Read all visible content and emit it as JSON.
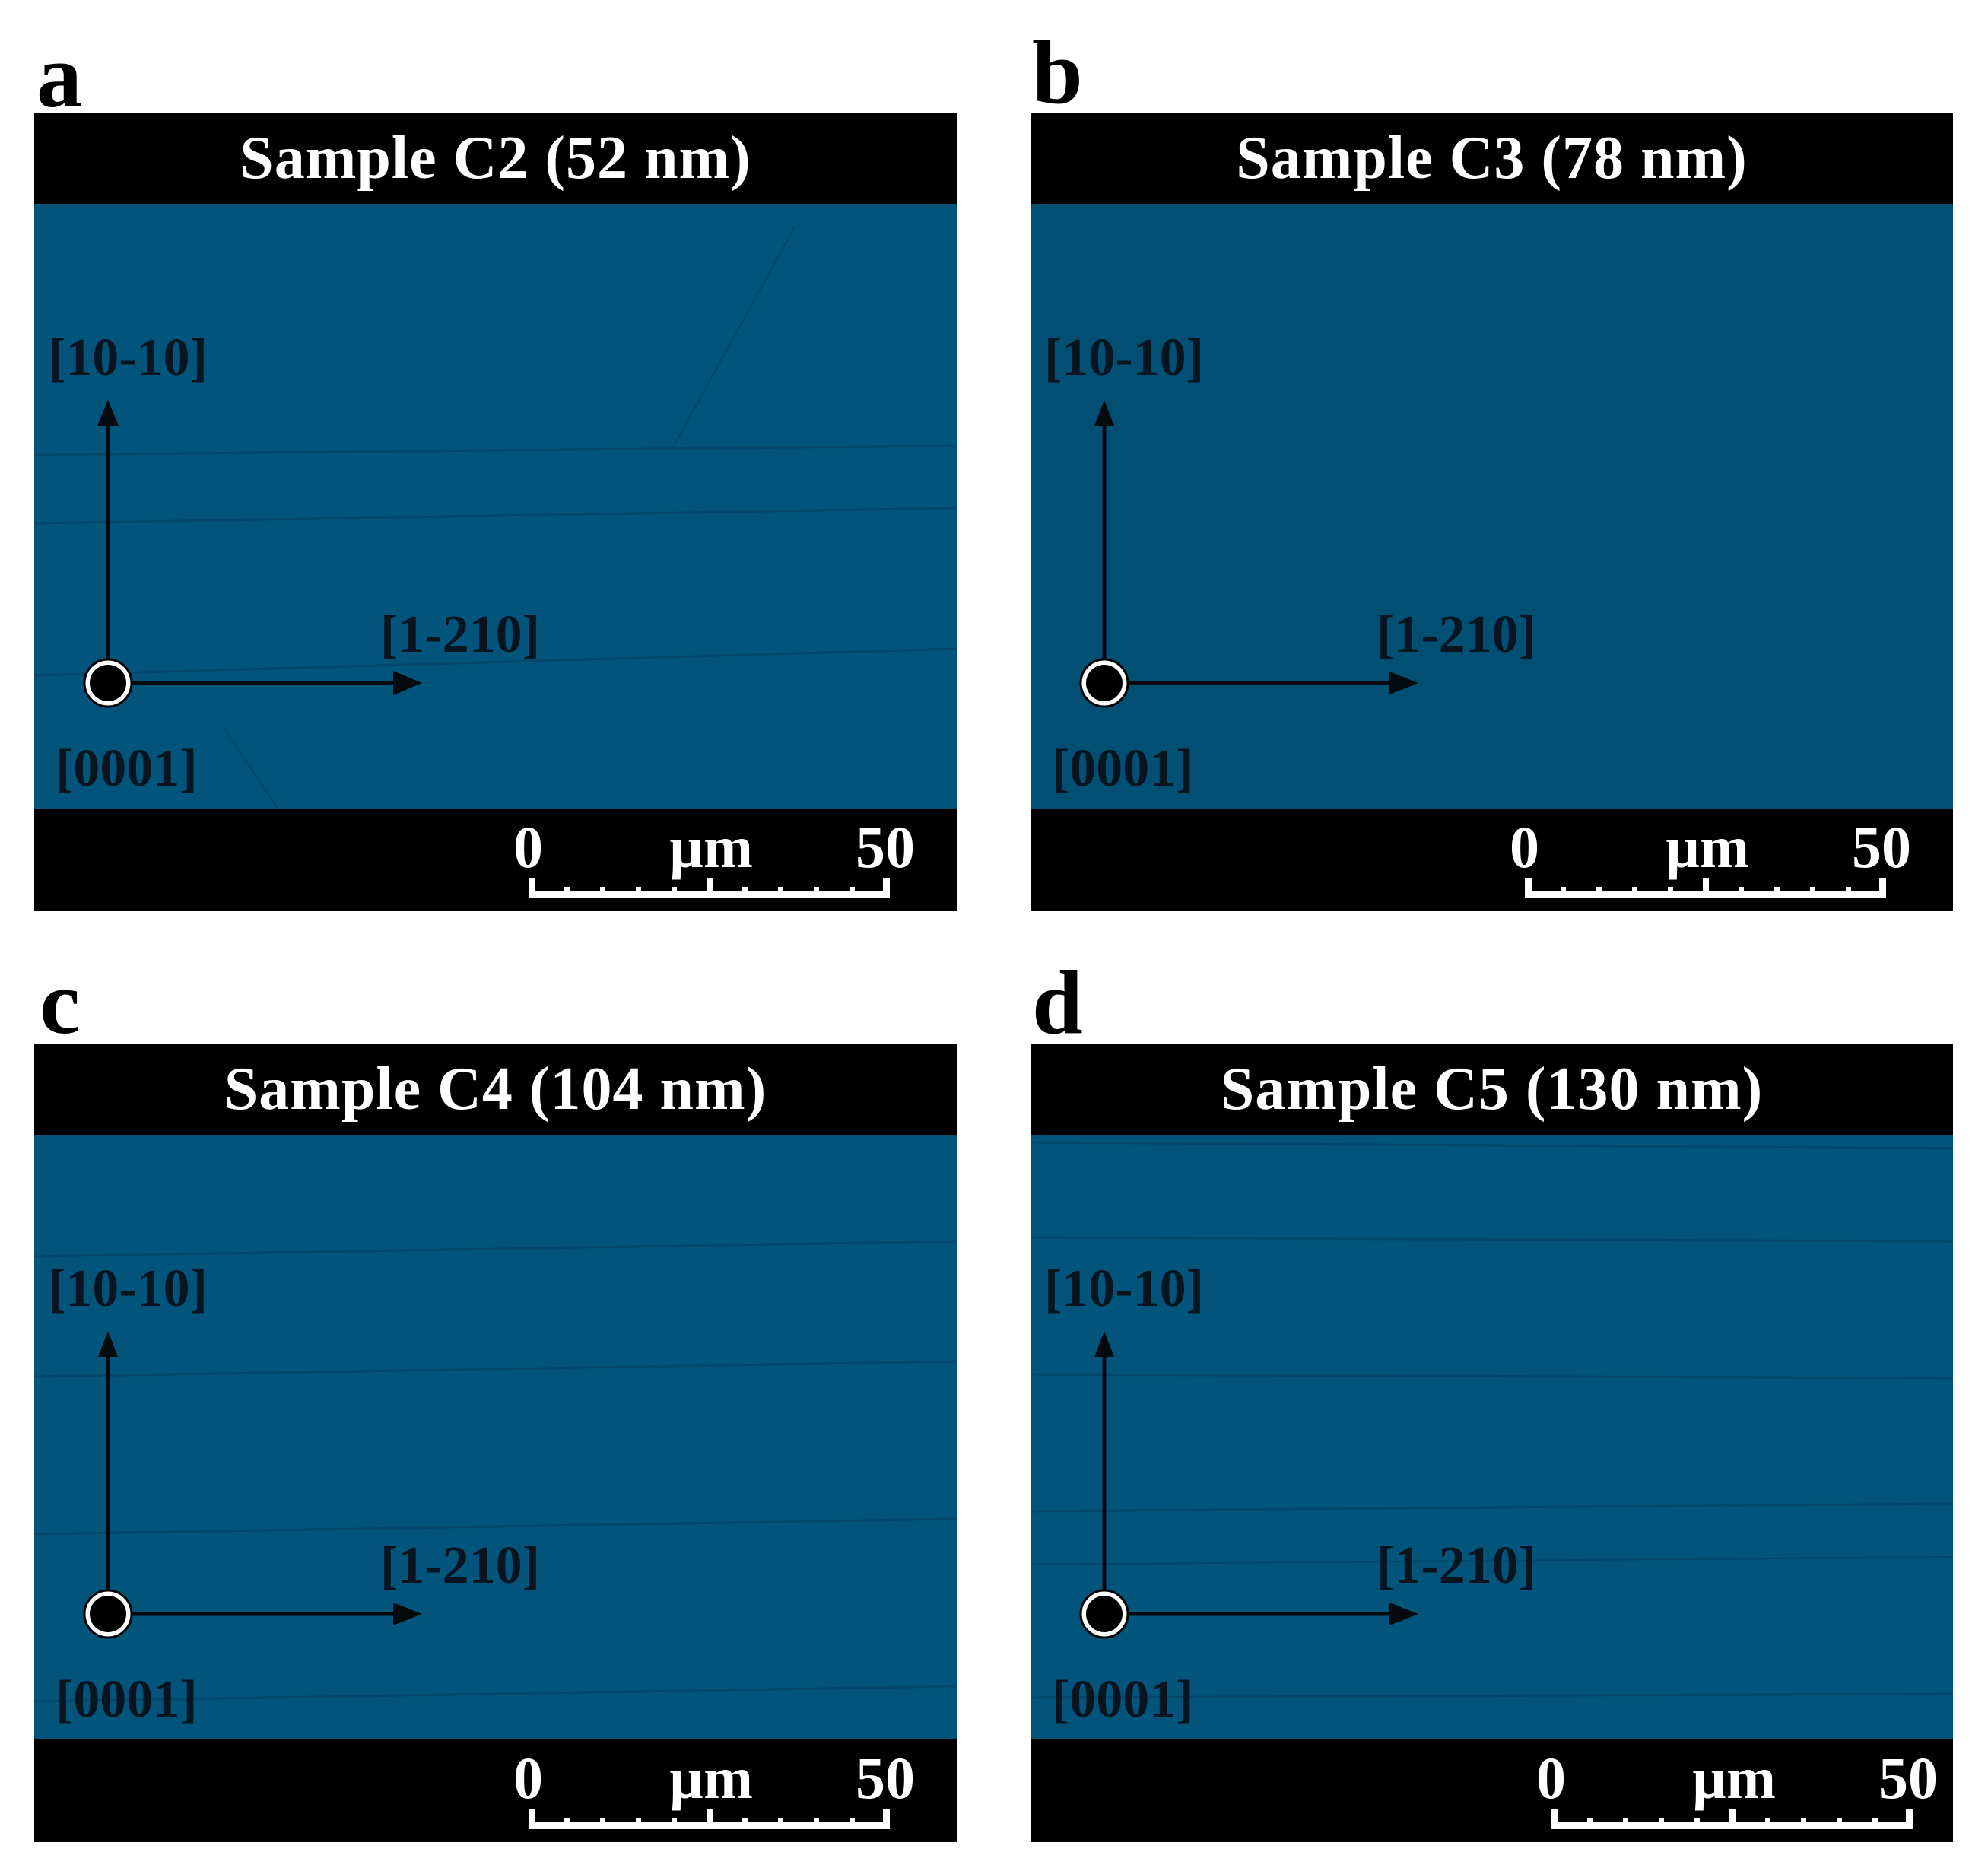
{
  "panels": [
    {
      "letter": "a",
      "title": "Sample C2 (52 nm)"
    },
    {
      "letter": "b",
      "title": "Sample C3 (78 nm)"
    },
    {
      "letter": "c",
      "title": "Sample C4 (104 nm)"
    },
    {
      "letter": "d",
      "title": "Sample C5 (130 nm)"
    }
  ],
  "axes": {
    "vertical": "[10-10]",
    "horizontal": "[1-210]",
    "out_of_plane": "[0001]"
  },
  "scale_bar": {
    "start": "0",
    "unit": "µm",
    "end": "50"
  },
  "colors": {
    "micrograph": "#02547a",
    "frame": "#000000"
  }
}
